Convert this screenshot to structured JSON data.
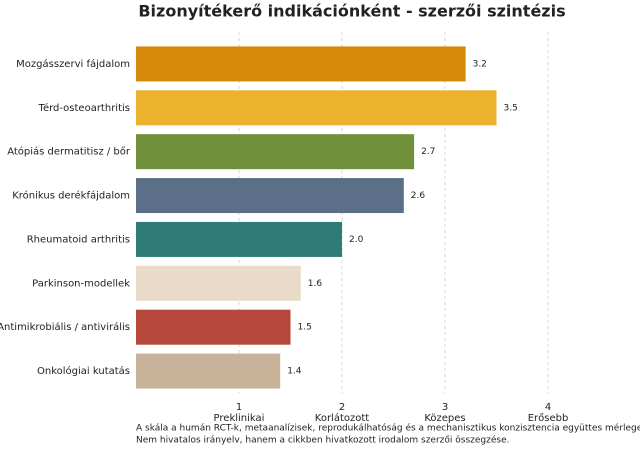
{
  "chart_data": {
    "type": "barh",
    "title": "Bizonyítékerő indikációnként - szerzői szintézis",
    "categories": [
      "Mozgásszervi fájdalom",
      "Térd-osteoarthritis",
      "Atópiás dermatitisz / bőr",
      "Krónikus derékfájdalom",
      "Rheumatoid arthritis",
      "Parkinson-modellek",
      "Antimikrobiális / antivirális",
      "Onkológiai kutatás"
    ],
    "values": [
      3.2,
      3.5,
      2.7,
      2.6,
      2.0,
      1.6,
      1.5,
      1.4
    ],
    "value_labels": [
      "3.2",
      "3.5",
      "2.7",
      "2.6",
      "2.0",
      "1.6",
      "1.5",
      "1.4"
    ],
    "colors": [
      "#d4890a",
      "#ecb22e",
      "#6f8f3a",
      "#5b7088",
      "#2e7b78",
      "#eadbc8",
      "#b5483b",
      "#c8b39a"
    ],
    "xlim": [
      0,
      4.5
    ],
    "xticks": [
      {
        "value": 1,
        "label": "1\nPreklinikai"
      },
      {
        "value": 2,
        "label": "2\nKorlátozott"
      },
      {
        "value": 3,
        "label": "3\nKözepes"
      },
      {
        "value": 4,
        "label": "4\nErősebb"
      }
    ],
    "grid": true,
    "footnote": [
      "A skála a humán RCT-k, metaanalízisek, reprodukálhatóság és a mechanisztikus konzisztencia együttes mérlegelése.",
      "Nem hivatalos irányelv, hanem a cikkben hivatkozott irodalom szerzői összegzése."
    ]
  }
}
